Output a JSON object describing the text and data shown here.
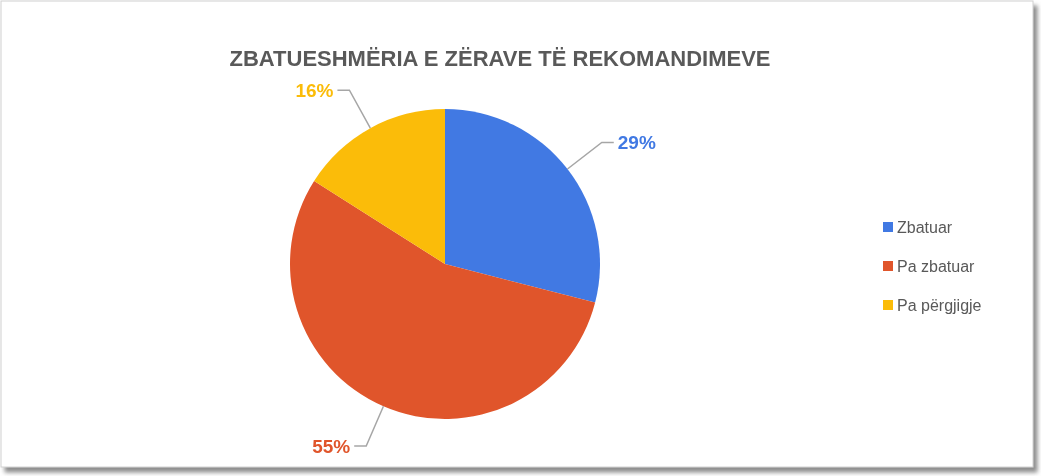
{
  "chart_data": {
    "type": "pie",
    "title": "ZBATUESHMËRIA E ZËRAVE TË REKOMANDIMEVE",
    "categories": [
      "Zbatuar",
      "Pa zbatuar",
      "Pa përgjigje"
    ],
    "values": [
      29,
      55,
      16
    ],
    "colors": [
      "#4179e3",
      "#e0552b",
      "#fbbc09"
    ],
    "value_labels": [
      "29%",
      "55%",
      "16%"
    ],
    "legend": "right"
  }
}
